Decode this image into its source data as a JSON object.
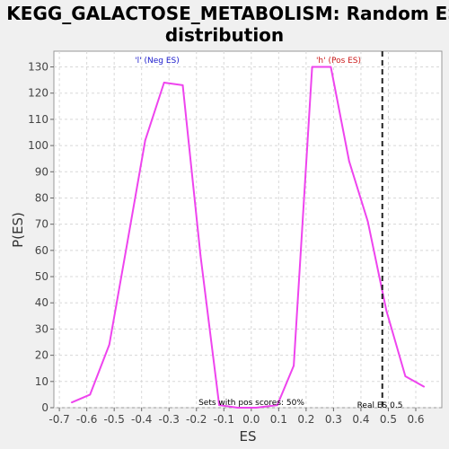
{
  "chart_data": {
    "type": "line",
    "title_line1": "KEGG_GALACTOSE_METABOLISM: Random ES",
    "title_line2": "distribution",
    "xlabel": "ES",
    "ylabel": "P(ES)",
    "xlim": [
      -0.72,
      0.695
    ],
    "ylim": [
      0,
      136
    ],
    "x_ticks": [
      "-0.7",
      "-0.6",
      "-0.5",
      "-0.4",
      "-0.3",
      "-0.2",
      "-0.1",
      "0.0",
      "0.1",
      "0.2",
      "0.3",
      "0.4",
      "0.5",
      "0.6"
    ],
    "x_tick_values": [
      -0.7,
      -0.6,
      -0.5,
      -0.4,
      -0.3,
      -0.2,
      -0.1,
      0.0,
      0.1,
      0.2,
      0.3,
      0.4,
      0.5,
      0.6
    ],
    "y_ticks": [
      0,
      10,
      20,
      30,
      40,
      50,
      60,
      70,
      80,
      90,
      100,
      110,
      120,
      130
    ],
    "grid": true,
    "series": [
      {
        "color": "#ee44ee",
        "x": [
          -0.655,
          -0.588,
          -0.518,
          -0.452,
          -0.387,
          -0.318,
          -0.25,
          -0.185,
          -0.117,
          -0.05,
          0.018,
          0.095,
          0.155,
          0.222,
          0.29,
          0.357,
          0.425,
          0.493,
          0.562,
          0.63
        ],
        "y": [
          2,
          5,
          24,
          63,
          102,
          124,
          123,
          58,
          1,
          0,
          0,
          1,
          16,
          130,
          130,
          94,
          71,
          37,
          12,
          8
        ]
      }
    ],
    "real_es": 0.478,
    "annotations": {
      "neg_label": "'l' (Neg ES)",
      "pos_label": "'h' (Pos ES)",
      "pos_scores": "Sets with pos scores: 50%",
      "real_es_label": "Real ES 0.5"
    },
    "colors": {
      "line": "#ee44ee",
      "neg_label": "#1a1acc",
      "pos_label": "#cc1a1a",
      "grid": "#d8d8d8",
      "plot_bg": "#ffffff",
      "page_bg": "#f0f0f0"
    }
  }
}
